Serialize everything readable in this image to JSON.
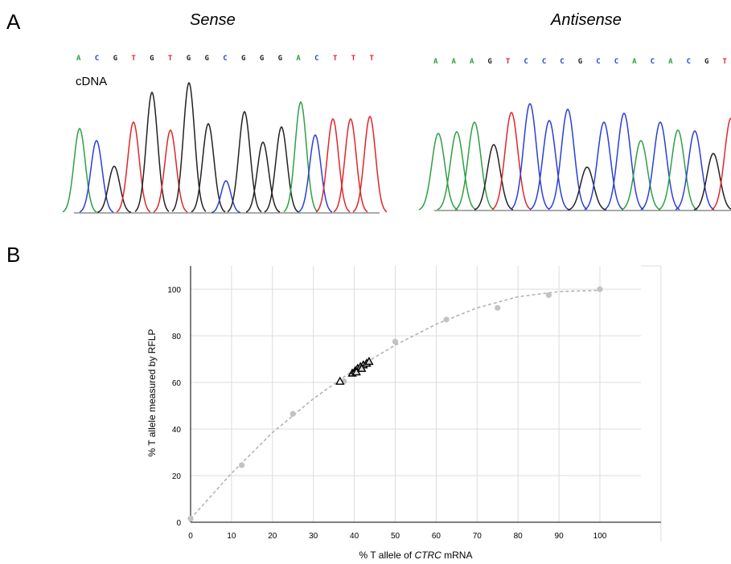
{
  "panels": {
    "a_letter": "A",
    "b_letter": "B"
  },
  "colors": {
    "A": "#2ea043",
    "C": "#2b3fd6",
    "G": "#222222",
    "T": "#e0262a",
    "grid": "#dcdcdc",
    "fit": "#b3b3b3",
    "standard": "#c2c2c2",
    "sample": "#000000"
  },
  "chromatograms": [
    {
      "title": "Sense",
      "label": "cDNA",
      "bases": [
        "A",
        "C",
        "G",
        "T",
        "G",
        "T",
        "G",
        "G",
        "C",
        "G",
        "G",
        "G",
        "A",
        "C",
        "T",
        "T",
        "T"
      ]
    },
    {
      "title": "Antisense",
      "label": "",
      "bases": [
        "A",
        "A",
        "A",
        "G",
        "T",
        "C",
        "C",
        "C",
        "G",
        "C",
        "C",
        "A",
        "C",
        "A",
        "C",
        "G",
        "T"
      ]
    }
  ],
  "chart_data": {
    "type": "scatter",
    "xlabel_prefix": "% T allele of ",
    "xlabel_gene": "CTRC",
    "xlabel_suffix": " mRNA",
    "ylabel": "% T allele measured by RFLP",
    "xlim": [
      0,
      110
    ],
    "ylim": [
      0,
      110
    ],
    "xticks": [
      0,
      10,
      20,
      30,
      40,
      50,
      60,
      70,
      80,
      90,
      100
    ],
    "yticks": [
      0,
      20,
      40,
      60,
      80,
      100
    ],
    "grid": true,
    "series": [
      {
        "marker": "circle",
        "x": [
          0,
          12.5,
          25,
          37.5,
          50,
          62.5,
          75,
          87.5,
          100
        ],
        "y": [
          1.5,
          24.5,
          46.5,
          60.5,
          77.5,
          87,
          92,
          97.5,
          100
        ]
      },
      {
        "marker": "triangle",
        "x": [
          36.5,
          39.5,
          40.2,
          40.8,
          41.5,
          42.2,
          43,
          43.6,
          40.5,
          41.8
        ],
        "y": [
          60.5,
          64,
          65,
          66,
          66.8,
          67.5,
          68.2,
          69,
          64.5,
          66
        ]
      },
      {
        "marker": "dashed-curve",
        "x": [
          0,
          10,
          20,
          30,
          40,
          50,
          60,
          70,
          80,
          90,
          100
        ],
        "y": [
          1.5,
          21,
          38.5,
          53,
          65.5,
          76,
          85,
          92,
          96.8,
          99,
          99.5
        ]
      }
    ]
  }
}
